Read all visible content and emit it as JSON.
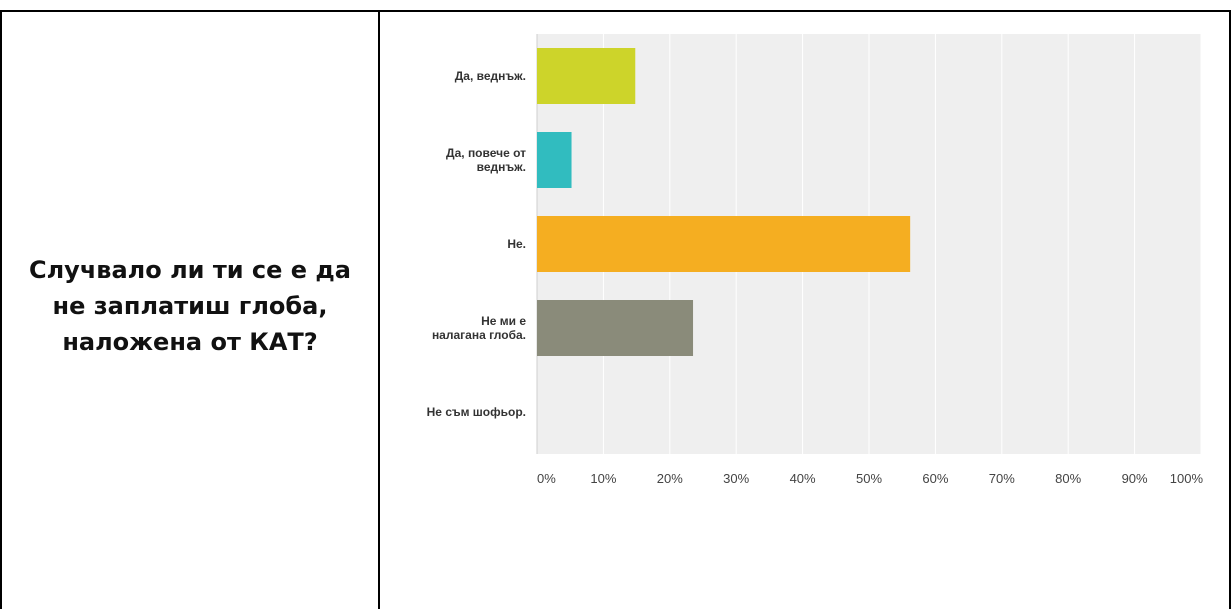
{
  "question": "Случвало ли ти се е да не заплатиш глоба, наложена от КАТ?",
  "chart_data": {
    "type": "bar",
    "orientation": "horizontal",
    "categories": [
      [
        "Да, веднъж."
      ],
      [
        "Да, повече от",
        "веднъж."
      ],
      [
        "Не."
      ],
      [
        "Не ми е",
        "налагана глоба."
      ],
      [
        "Не съм шофьор."
      ]
    ],
    "values": [
      14.8,
      5.2,
      56.2,
      23.5,
      0
    ],
    "colors": [
      "#cdd42a",
      "#31bcbf",
      "#f5ae21",
      "#8a8b7a",
      "#999999"
    ],
    "xlim": [
      0,
      100
    ],
    "ticks": [
      "0%",
      "10%",
      "20%",
      "30%",
      "40%",
      "50%",
      "60%",
      "70%",
      "80%",
      "90%",
      "100%"
    ],
    "grid": true,
    "background": "#efefef",
    "title": "",
    "xlabel": "",
    "ylabel": ""
  }
}
